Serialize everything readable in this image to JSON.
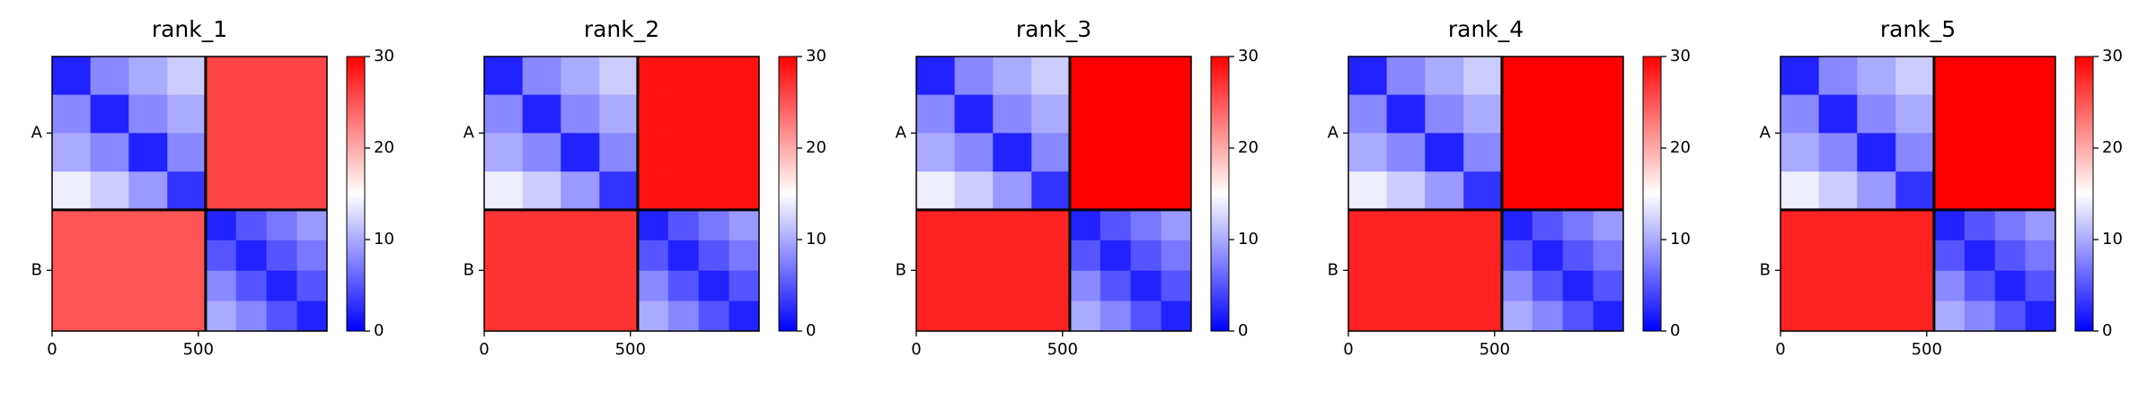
{
  "chart_data": [
    {
      "type": "heatmap",
      "title": "rank_1",
      "xbins": [
        0,
        131,
        262,
        394,
        525,
        629,
        733,
        837,
        940
      ],
      "ybins": [
        0,
        131,
        262,
        394,
        525,
        629,
        733,
        837,
        940
      ],
      "z": [
        [
          2,
          8,
          10,
          12,
          26,
          26,
          26,
          26
        ],
        [
          8,
          2,
          8,
          10,
          26,
          26,
          26,
          26
        ],
        [
          10,
          8,
          2,
          8,
          26,
          26,
          26,
          26
        ],
        [
          14,
          12,
          9,
          3,
          26,
          26,
          26,
          26
        ],
        [
          25,
          25,
          25,
          25,
          2,
          5,
          7,
          9
        ],
        [
          25,
          25,
          25,
          25,
          5,
          2,
          5,
          7
        ],
        [
          25,
          25,
          25,
          25,
          8,
          5,
          2,
          5
        ],
        [
          25,
          25,
          25,
          25,
          10,
          8,
          5,
          2
        ]
      ],
      "xlim": [
        0,
        940
      ],
      "ylim": [
        940,
        0
      ],
      "xticks": [
        0,
        500
      ],
      "yticks": [
        {
          "value": 262,
          "label": "A"
        },
        {
          "value": 732,
          "label": "B"
        }
      ],
      "colormap": "bwr",
      "clim": [
        0,
        30
      ],
      "cticks": [
        0,
        10,
        20,
        30
      ],
      "chain_breaks": [
        525
      ]
    },
    {
      "type": "heatmap",
      "title": "rank_2",
      "xbins": [
        0,
        131,
        262,
        394,
        525,
        629,
        733,
        837,
        940
      ],
      "ybins": [
        0,
        131,
        262,
        394,
        525,
        629,
        733,
        837,
        940
      ],
      "z": [
        [
          2,
          8,
          10,
          12,
          29,
          29,
          29,
          29
        ],
        [
          8,
          2,
          8,
          10,
          29,
          29,
          29,
          29
        ],
        [
          10,
          8,
          2,
          8,
          29,
          29,
          29,
          29
        ],
        [
          14,
          12,
          9,
          3,
          29,
          29,
          29,
          29
        ],
        [
          27,
          27,
          27,
          27,
          2,
          5,
          7,
          9
        ],
        [
          27,
          27,
          27,
          27,
          5,
          2,
          5,
          7
        ],
        [
          27,
          27,
          27,
          27,
          8,
          5,
          2,
          5
        ],
        [
          27,
          27,
          27,
          27,
          10,
          8,
          5,
          2
        ]
      ],
      "xlim": [
        0,
        940
      ],
      "ylim": [
        940,
        0
      ],
      "xticks": [
        0,
        500
      ],
      "yticks": [
        {
          "value": 262,
          "label": "A"
        },
        {
          "value": 732,
          "label": "B"
        }
      ],
      "colormap": "bwr",
      "clim": [
        0,
        30
      ],
      "cticks": [
        0,
        10,
        20,
        30
      ],
      "chain_breaks": [
        525
      ]
    },
    {
      "type": "heatmap",
      "title": "rank_3",
      "xbins": [
        0,
        131,
        262,
        394,
        525,
        629,
        733,
        837,
        940
      ],
      "ybins": [
        0,
        131,
        262,
        394,
        525,
        629,
        733,
        837,
        940
      ],
      "z": [
        [
          2,
          8,
          10,
          12,
          30,
          30,
          30,
          30
        ],
        [
          8,
          2,
          8,
          10,
          30,
          30,
          30,
          30
        ],
        [
          10,
          8,
          2,
          8,
          30,
          30,
          30,
          30
        ],
        [
          14,
          12,
          9,
          3,
          30,
          30,
          30,
          30
        ],
        [
          28,
          28,
          28,
          28,
          2,
          5,
          7,
          9
        ],
        [
          28,
          28,
          28,
          28,
          5,
          2,
          5,
          7
        ],
        [
          28,
          28,
          28,
          28,
          8,
          5,
          2,
          5
        ],
        [
          28,
          28,
          28,
          28,
          10,
          8,
          5,
          2
        ]
      ],
      "xlim": [
        0,
        940
      ],
      "ylim": [
        940,
        0
      ],
      "xticks": [
        0,
        500
      ],
      "yticks": [
        {
          "value": 262,
          "label": "A"
        },
        {
          "value": 732,
          "label": "B"
        }
      ],
      "colormap": "bwr",
      "clim": [
        0,
        30
      ],
      "cticks": [
        0,
        10,
        20,
        30
      ],
      "chain_breaks": [
        525
      ]
    },
    {
      "type": "heatmap",
      "title": "rank_4",
      "xbins": [
        0,
        131,
        262,
        394,
        525,
        629,
        733,
        837,
        940
      ],
      "ybins": [
        0,
        131,
        262,
        394,
        525,
        629,
        733,
        837,
        940
      ],
      "z": [
        [
          2,
          8,
          10,
          12,
          30,
          30,
          30,
          30
        ],
        [
          8,
          2,
          8,
          10,
          30,
          30,
          30,
          30
        ],
        [
          10,
          8,
          2,
          8,
          30,
          30,
          30,
          30
        ],
        [
          14,
          12,
          9,
          3,
          30,
          30,
          30,
          30
        ],
        [
          28,
          28,
          28,
          28,
          2,
          5,
          7,
          9
        ],
        [
          28,
          28,
          28,
          28,
          5,
          2,
          5,
          7
        ],
        [
          28,
          28,
          28,
          28,
          8,
          5,
          2,
          5
        ],
        [
          28,
          28,
          28,
          28,
          10,
          8,
          5,
          2
        ]
      ],
      "xlim": [
        0,
        940
      ],
      "ylim": [
        940,
        0
      ],
      "xticks": [
        0,
        500
      ],
      "yticks": [
        {
          "value": 262,
          "label": "A"
        },
        {
          "value": 732,
          "label": "B"
        }
      ],
      "colormap": "bwr",
      "clim": [
        0,
        30
      ],
      "cticks": [
        0,
        10,
        20,
        30
      ],
      "chain_breaks": [
        525
      ]
    },
    {
      "type": "heatmap",
      "title": "rank_5",
      "xbins": [
        0,
        131,
        262,
        394,
        525,
        629,
        733,
        837,
        940
      ],
      "ybins": [
        0,
        131,
        262,
        394,
        525,
        629,
        733,
        837,
        940
      ],
      "z": [
        [
          2,
          8,
          10,
          12,
          30,
          30,
          30,
          30
        ],
        [
          8,
          2,
          8,
          10,
          30,
          30,
          30,
          30
        ],
        [
          10,
          8,
          2,
          8,
          30,
          30,
          30,
          30
        ],
        [
          14,
          12,
          9,
          3,
          30,
          30,
          30,
          30
        ],
        [
          28,
          28,
          28,
          28,
          2,
          5,
          7,
          9
        ],
        [
          28,
          28,
          28,
          28,
          5,
          2,
          5,
          7
        ],
        [
          28,
          28,
          28,
          28,
          8,
          5,
          2,
          5
        ],
        [
          28,
          28,
          28,
          28,
          10,
          8,
          5,
          2
        ]
      ],
      "xlim": [
        0,
        940
      ],
      "ylim": [
        940,
        0
      ],
      "xticks": [
        0,
        500
      ],
      "yticks": [
        {
          "value": 262,
          "label": "A"
        },
        {
          "value": 732,
          "label": "B"
        }
      ],
      "colormap": "bwr",
      "clim": [
        0,
        30
      ],
      "cticks": [
        0,
        10,
        20,
        30
      ],
      "chain_breaks": [
        525
      ]
    }
  ]
}
